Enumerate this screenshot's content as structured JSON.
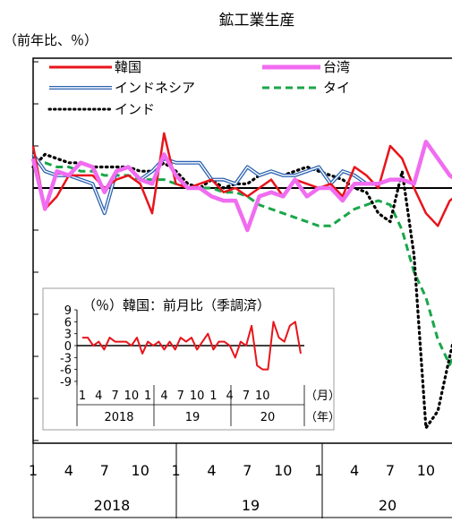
{
  "chart_data": [
    {
      "type": "line",
      "title": "鉱工業生産",
      "ylabel": "（前年比、％）",
      "x_tick_labels": [
        "1",
        "4",
        "7",
        "10",
        "1",
        "4",
        "7",
        "10",
        "1",
        "4",
        "7",
        "10"
      ],
      "year_labels": [
        "2018",
        "19",
        "20"
      ],
      "x_unit_labels": [
        "（月）",
        "（年）"
      ],
      "ylim": [
        -60,
        30
      ],
      "grid": false,
      "legend_position": "top",
      "series": [
        {
          "name": "韓国",
          "color": "#e8141b",
          "style": "solid",
          "values": [
            10,
            -5,
            -2,
            3,
            3,
            3,
            0,
            2,
            3,
            1,
            -6,
            13,
            1,
            0,
            1,
            2,
            -1,
            0,
            -2,
            0,
            2,
            -2,
            2,
            1,
            0,
            1,
            -2,
            5,
            3,
            0,
            10,
            7,
            0,
            -6,
            -9,
            -3,
            -1,
            -1,
            0,
            8,
            -2
          ]
        },
        {
          "name": "台湾",
          "color": "#f06cf0",
          "style": "solid-thick",
          "values": [
            7,
            -5,
            4,
            3,
            6,
            5,
            -1,
            4,
            5,
            2,
            1,
            8,
            3,
            0,
            0,
            -2,
            -3,
            -3,
            -10,
            -2,
            -1,
            -2,
            2,
            -2,
            0,
            0,
            -3,
            1,
            1,
            1,
            2,
            2,
            1,
            11,
            7,
            3,
            1,
            7,
            0,
            1,
            12,
            7
          ]
        },
        {
          "name": "インドネシア",
          "color": "#2c62b0",
          "style": "double",
          "values": [
            8,
            4,
            3,
            3,
            2,
            1,
            -6,
            4,
            5,
            2,
            4,
            7,
            6,
            6,
            6,
            2,
            2,
            1,
            5,
            3,
            4,
            3,
            3,
            4,
            5,
            1,
            4,
            3,
            1,
            1
          ]
        },
        {
          "name": "タイ",
          "color": "#1aa64a",
          "style": "dashed",
          "values": [
            6,
            6,
            5,
            5,
            4,
            4,
            3,
            3,
            3,
            2,
            2,
            2,
            1,
            1,
            0,
            0,
            -1,
            -1,
            -2,
            -4,
            -5,
            -6,
            -7,
            -8,
            -9,
            -9,
            -7,
            -5,
            -4,
            -3,
            -4,
            -10,
            -20,
            -26,
            -36,
            -42,
            -34,
            -26,
            -20,
            -10,
            -1,
            -1
          ]
        },
        {
          "name": "インド",
          "color": "#000000",
          "style": "dotted",
          "values": [
            5,
            8,
            7,
            6,
            6,
            5,
            5,
            5,
            5,
            4,
            4,
            6,
            4,
            1,
            0,
            2,
            0,
            1,
            1,
            3,
            4,
            3,
            4,
            5,
            4,
            3,
            2,
            0,
            -1,
            -6,
            -8,
            4,
            -16,
            -57,
            -53,
            -40,
            -28,
            -18,
            -12,
            -6,
            -3,
            2
          ]
        }
      ]
    },
    {
      "type": "line",
      "title": "（％）韓国：前月比（季調済）",
      "ylim": [
        -9,
        9
      ],
      "y_tick_labels": [
        "9",
        "6",
        "3",
        "0",
        "-3",
        "-6",
        "-9"
      ],
      "x_tick_labels": [
        "1",
        "4",
        "7",
        "10",
        "1",
        "4",
        "7",
        "10",
        "1",
        "4",
        "7",
        "10"
      ],
      "year_labels": [
        "2018",
        "19",
        "20"
      ],
      "x_unit_labels": [
        "（月）",
        "（年）"
      ],
      "series": [
        {
          "name": "韓国",
          "color": "#e8141b",
          "values": [
            2,
            2,
            0,
            1,
            -1,
            2,
            1,
            1,
            1,
            0,
            2,
            -2,
            1,
            0,
            1,
            -1,
            1,
            -1,
            2,
            1,
            2,
            -1,
            1,
            3,
            -1,
            1,
            1,
            0,
            -3,
            1,
            0,
            5,
            -5,
            -6,
            -6,
            6,
            2,
            1,
            5,
            6,
            -2
          ]
        }
      ]
    }
  ]
}
